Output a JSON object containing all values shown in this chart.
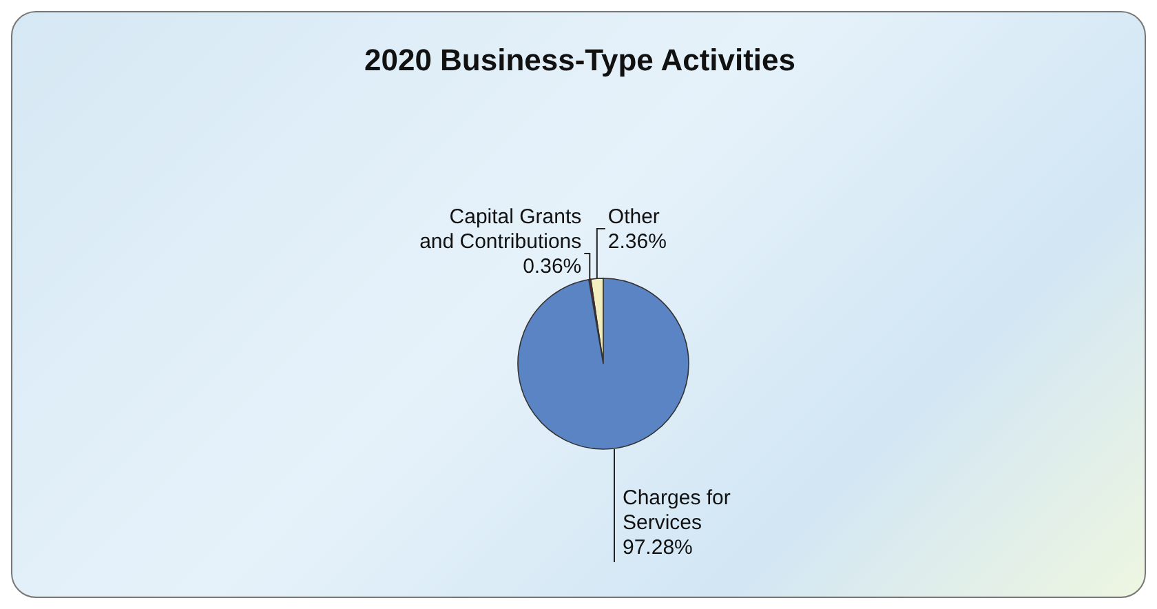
{
  "chart_data": {
    "type": "pie",
    "title": "2020 Business-Type Activities",
    "categories": [
      "Other",
      "Capital Grants and Contributions",
      "Charges for Services"
    ],
    "values": [
      2.36,
      0.36,
      97.28
    ],
    "colors": [
      "#f3eec0",
      "#7a1c2c",
      "#5b84c4"
    ],
    "value_labels": [
      "2.36%",
      "0.36%",
      "97.28%"
    ]
  }
}
